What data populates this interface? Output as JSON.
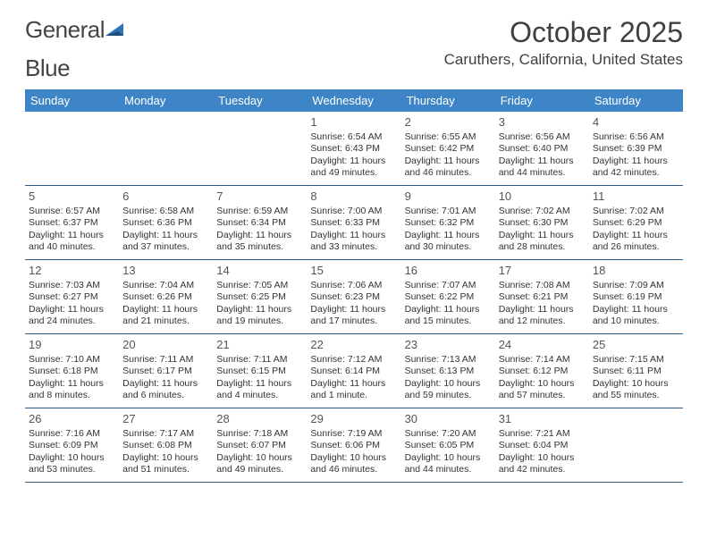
{
  "logo": {
    "word1": "General",
    "word2": "Blue"
  },
  "title": "October 2025",
  "location": "Caruthers, California, United States",
  "colors": {
    "header_bg": "#3d85c6",
    "header_text": "#ffffff",
    "row_border": "#2e5d8a",
    "page_bg": "#ffffff",
    "text": "#333333",
    "title_text": "#404040"
  },
  "dow": [
    "Sunday",
    "Monday",
    "Tuesday",
    "Wednesday",
    "Thursday",
    "Friday",
    "Saturday"
  ],
  "weeks": [
    [
      null,
      null,
      null,
      {
        "n": "1",
        "sr": "Sunrise: 6:54 AM",
        "ss": "Sunset: 6:43 PM",
        "d1": "Daylight: 11 hours",
        "d2": "and 49 minutes."
      },
      {
        "n": "2",
        "sr": "Sunrise: 6:55 AM",
        "ss": "Sunset: 6:42 PM",
        "d1": "Daylight: 11 hours",
        "d2": "and 46 minutes."
      },
      {
        "n": "3",
        "sr": "Sunrise: 6:56 AM",
        "ss": "Sunset: 6:40 PM",
        "d1": "Daylight: 11 hours",
        "d2": "and 44 minutes."
      },
      {
        "n": "4",
        "sr": "Sunrise: 6:56 AM",
        "ss": "Sunset: 6:39 PM",
        "d1": "Daylight: 11 hours",
        "d2": "and 42 minutes."
      }
    ],
    [
      {
        "n": "5",
        "sr": "Sunrise: 6:57 AM",
        "ss": "Sunset: 6:37 PM",
        "d1": "Daylight: 11 hours",
        "d2": "and 40 minutes."
      },
      {
        "n": "6",
        "sr": "Sunrise: 6:58 AM",
        "ss": "Sunset: 6:36 PM",
        "d1": "Daylight: 11 hours",
        "d2": "and 37 minutes."
      },
      {
        "n": "7",
        "sr": "Sunrise: 6:59 AM",
        "ss": "Sunset: 6:34 PM",
        "d1": "Daylight: 11 hours",
        "d2": "and 35 minutes."
      },
      {
        "n": "8",
        "sr": "Sunrise: 7:00 AM",
        "ss": "Sunset: 6:33 PM",
        "d1": "Daylight: 11 hours",
        "d2": "and 33 minutes."
      },
      {
        "n": "9",
        "sr": "Sunrise: 7:01 AM",
        "ss": "Sunset: 6:32 PM",
        "d1": "Daylight: 11 hours",
        "d2": "and 30 minutes."
      },
      {
        "n": "10",
        "sr": "Sunrise: 7:02 AM",
        "ss": "Sunset: 6:30 PM",
        "d1": "Daylight: 11 hours",
        "d2": "and 28 minutes."
      },
      {
        "n": "11",
        "sr": "Sunrise: 7:02 AM",
        "ss": "Sunset: 6:29 PM",
        "d1": "Daylight: 11 hours",
        "d2": "and 26 minutes."
      }
    ],
    [
      {
        "n": "12",
        "sr": "Sunrise: 7:03 AM",
        "ss": "Sunset: 6:27 PM",
        "d1": "Daylight: 11 hours",
        "d2": "and 24 minutes."
      },
      {
        "n": "13",
        "sr": "Sunrise: 7:04 AM",
        "ss": "Sunset: 6:26 PM",
        "d1": "Daylight: 11 hours",
        "d2": "and 21 minutes."
      },
      {
        "n": "14",
        "sr": "Sunrise: 7:05 AM",
        "ss": "Sunset: 6:25 PM",
        "d1": "Daylight: 11 hours",
        "d2": "and 19 minutes."
      },
      {
        "n": "15",
        "sr": "Sunrise: 7:06 AM",
        "ss": "Sunset: 6:23 PM",
        "d1": "Daylight: 11 hours",
        "d2": "and 17 minutes."
      },
      {
        "n": "16",
        "sr": "Sunrise: 7:07 AM",
        "ss": "Sunset: 6:22 PM",
        "d1": "Daylight: 11 hours",
        "d2": "and 15 minutes."
      },
      {
        "n": "17",
        "sr": "Sunrise: 7:08 AM",
        "ss": "Sunset: 6:21 PM",
        "d1": "Daylight: 11 hours",
        "d2": "and 12 minutes."
      },
      {
        "n": "18",
        "sr": "Sunrise: 7:09 AM",
        "ss": "Sunset: 6:19 PM",
        "d1": "Daylight: 11 hours",
        "d2": "and 10 minutes."
      }
    ],
    [
      {
        "n": "19",
        "sr": "Sunrise: 7:10 AM",
        "ss": "Sunset: 6:18 PM",
        "d1": "Daylight: 11 hours",
        "d2": "and 8 minutes."
      },
      {
        "n": "20",
        "sr": "Sunrise: 7:11 AM",
        "ss": "Sunset: 6:17 PM",
        "d1": "Daylight: 11 hours",
        "d2": "and 6 minutes."
      },
      {
        "n": "21",
        "sr": "Sunrise: 7:11 AM",
        "ss": "Sunset: 6:15 PM",
        "d1": "Daylight: 11 hours",
        "d2": "and 4 minutes."
      },
      {
        "n": "22",
        "sr": "Sunrise: 7:12 AM",
        "ss": "Sunset: 6:14 PM",
        "d1": "Daylight: 11 hours",
        "d2": "and 1 minute."
      },
      {
        "n": "23",
        "sr": "Sunrise: 7:13 AM",
        "ss": "Sunset: 6:13 PM",
        "d1": "Daylight: 10 hours",
        "d2": "and 59 minutes."
      },
      {
        "n": "24",
        "sr": "Sunrise: 7:14 AM",
        "ss": "Sunset: 6:12 PM",
        "d1": "Daylight: 10 hours",
        "d2": "and 57 minutes."
      },
      {
        "n": "25",
        "sr": "Sunrise: 7:15 AM",
        "ss": "Sunset: 6:11 PM",
        "d1": "Daylight: 10 hours",
        "d2": "and 55 minutes."
      }
    ],
    [
      {
        "n": "26",
        "sr": "Sunrise: 7:16 AM",
        "ss": "Sunset: 6:09 PM",
        "d1": "Daylight: 10 hours",
        "d2": "and 53 minutes."
      },
      {
        "n": "27",
        "sr": "Sunrise: 7:17 AM",
        "ss": "Sunset: 6:08 PM",
        "d1": "Daylight: 10 hours",
        "d2": "and 51 minutes."
      },
      {
        "n": "28",
        "sr": "Sunrise: 7:18 AM",
        "ss": "Sunset: 6:07 PM",
        "d1": "Daylight: 10 hours",
        "d2": "and 49 minutes."
      },
      {
        "n": "29",
        "sr": "Sunrise: 7:19 AM",
        "ss": "Sunset: 6:06 PM",
        "d1": "Daylight: 10 hours",
        "d2": "and 46 minutes."
      },
      {
        "n": "30",
        "sr": "Sunrise: 7:20 AM",
        "ss": "Sunset: 6:05 PM",
        "d1": "Daylight: 10 hours",
        "d2": "and 44 minutes."
      },
      {
        "n": "31",
        "sr": "Sunrise: 7:21 AM",
        "ss": "Sunset: 6:04 PM",
        "d1": "Daylight: 10 hours",
        "d2": "and 42 minutes."
      },
      null
    ]
  ]
}
